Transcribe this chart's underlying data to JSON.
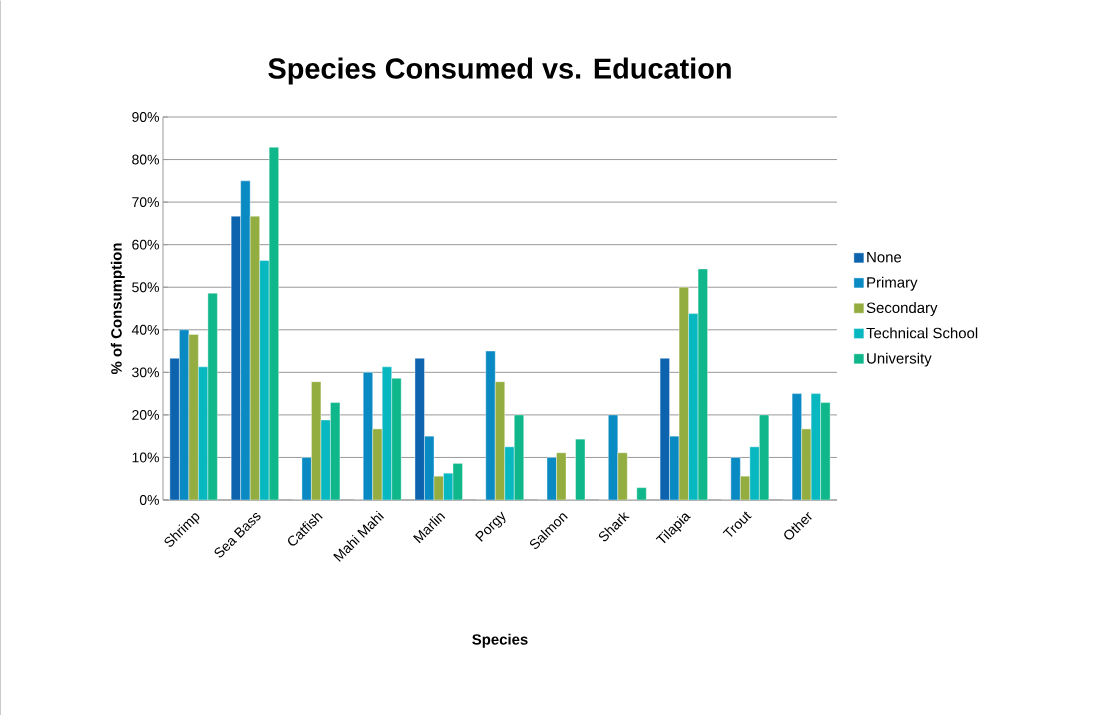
{
  "chart_data": {
    "type": "bar",
    "title": "Species Consumed  vs. Education",
    "xlabel": "Species",
    "ylabel": "% of Consumption",
    "categories": [
      "Shrimp",
      "Sea Bass",
      "Catfish",
      "Mahi Mahi",
      "Marlin",
      "Porgy",
      "Salmon",
      "Shark",
      "Tilapia",
      "Trout",
      "Other"
    ],
    "series": [
      {
        "name": "None",
        "color": "#0e63ae",
        "values": [
          33.3,
          66.7,
          0,
          0,
          33.3,
          0,
          0,
          0,
          33.3,
          0,
          0
        ]
      },
      {
        "name": "Primary",
        "color": "#0a8ac3",
        "values": [
          40,
          75,
          10,
          30,
          15,
          35,
          10,
          20,
          15,
          10,
          25
        ]
      },
      {
        "name": "Secondary",
        "color": "#94ad41",
        "values": [
          38.9,
          66.7,
          27.8,
          16.7,
          5.6,
          27.8,
          11.1,
          11.1,
          50,
          5.6,
          16.7
        ]
      },
      {
        "name": "Technical School",
        "color": "#08b8c0",
        "values": [
          31.3,
          56.3,
          18.8,
          31.3,
          6.3,
          12.5,
          0,
          0,
          43.8,
          12.5,
          25
        ]
      },
      {
        "name": "University",
        "color": "#10b78a",
        "values": [
          48.6,
          82.9,
          22.9,
          28.6,
          8.6,
          20,
          14.3,
          2.9,
          54.3,
          20,
          22.9
        ]
      }
    ],
    "ylim": [
      0,
      90
    ],
    "yticks": [
      {
        "value": 0,
        "label": "0%"
      },
      {
        "value": 10,
        "label": "10%"
      },
      {
        "value": 20,
        "label": "20%"
      },
      {
        "value": 30,
        "label": "30%"
      },
      {
        "value": 40,
        "label": "40%"
      },
      {
        "value": 50,
        "label": "50%"
      },
      {
        "value": 60,
        "label": "60%"
      },
      {
        "value": 70,
        "label": "70%"
      },
      {
        "value": 80,
        "label": "80%"
      },
      {
        "value": 90,
        "label": "90%"
      }
    ],
    "grid": "y",
    "legend": "right"
  }
}
